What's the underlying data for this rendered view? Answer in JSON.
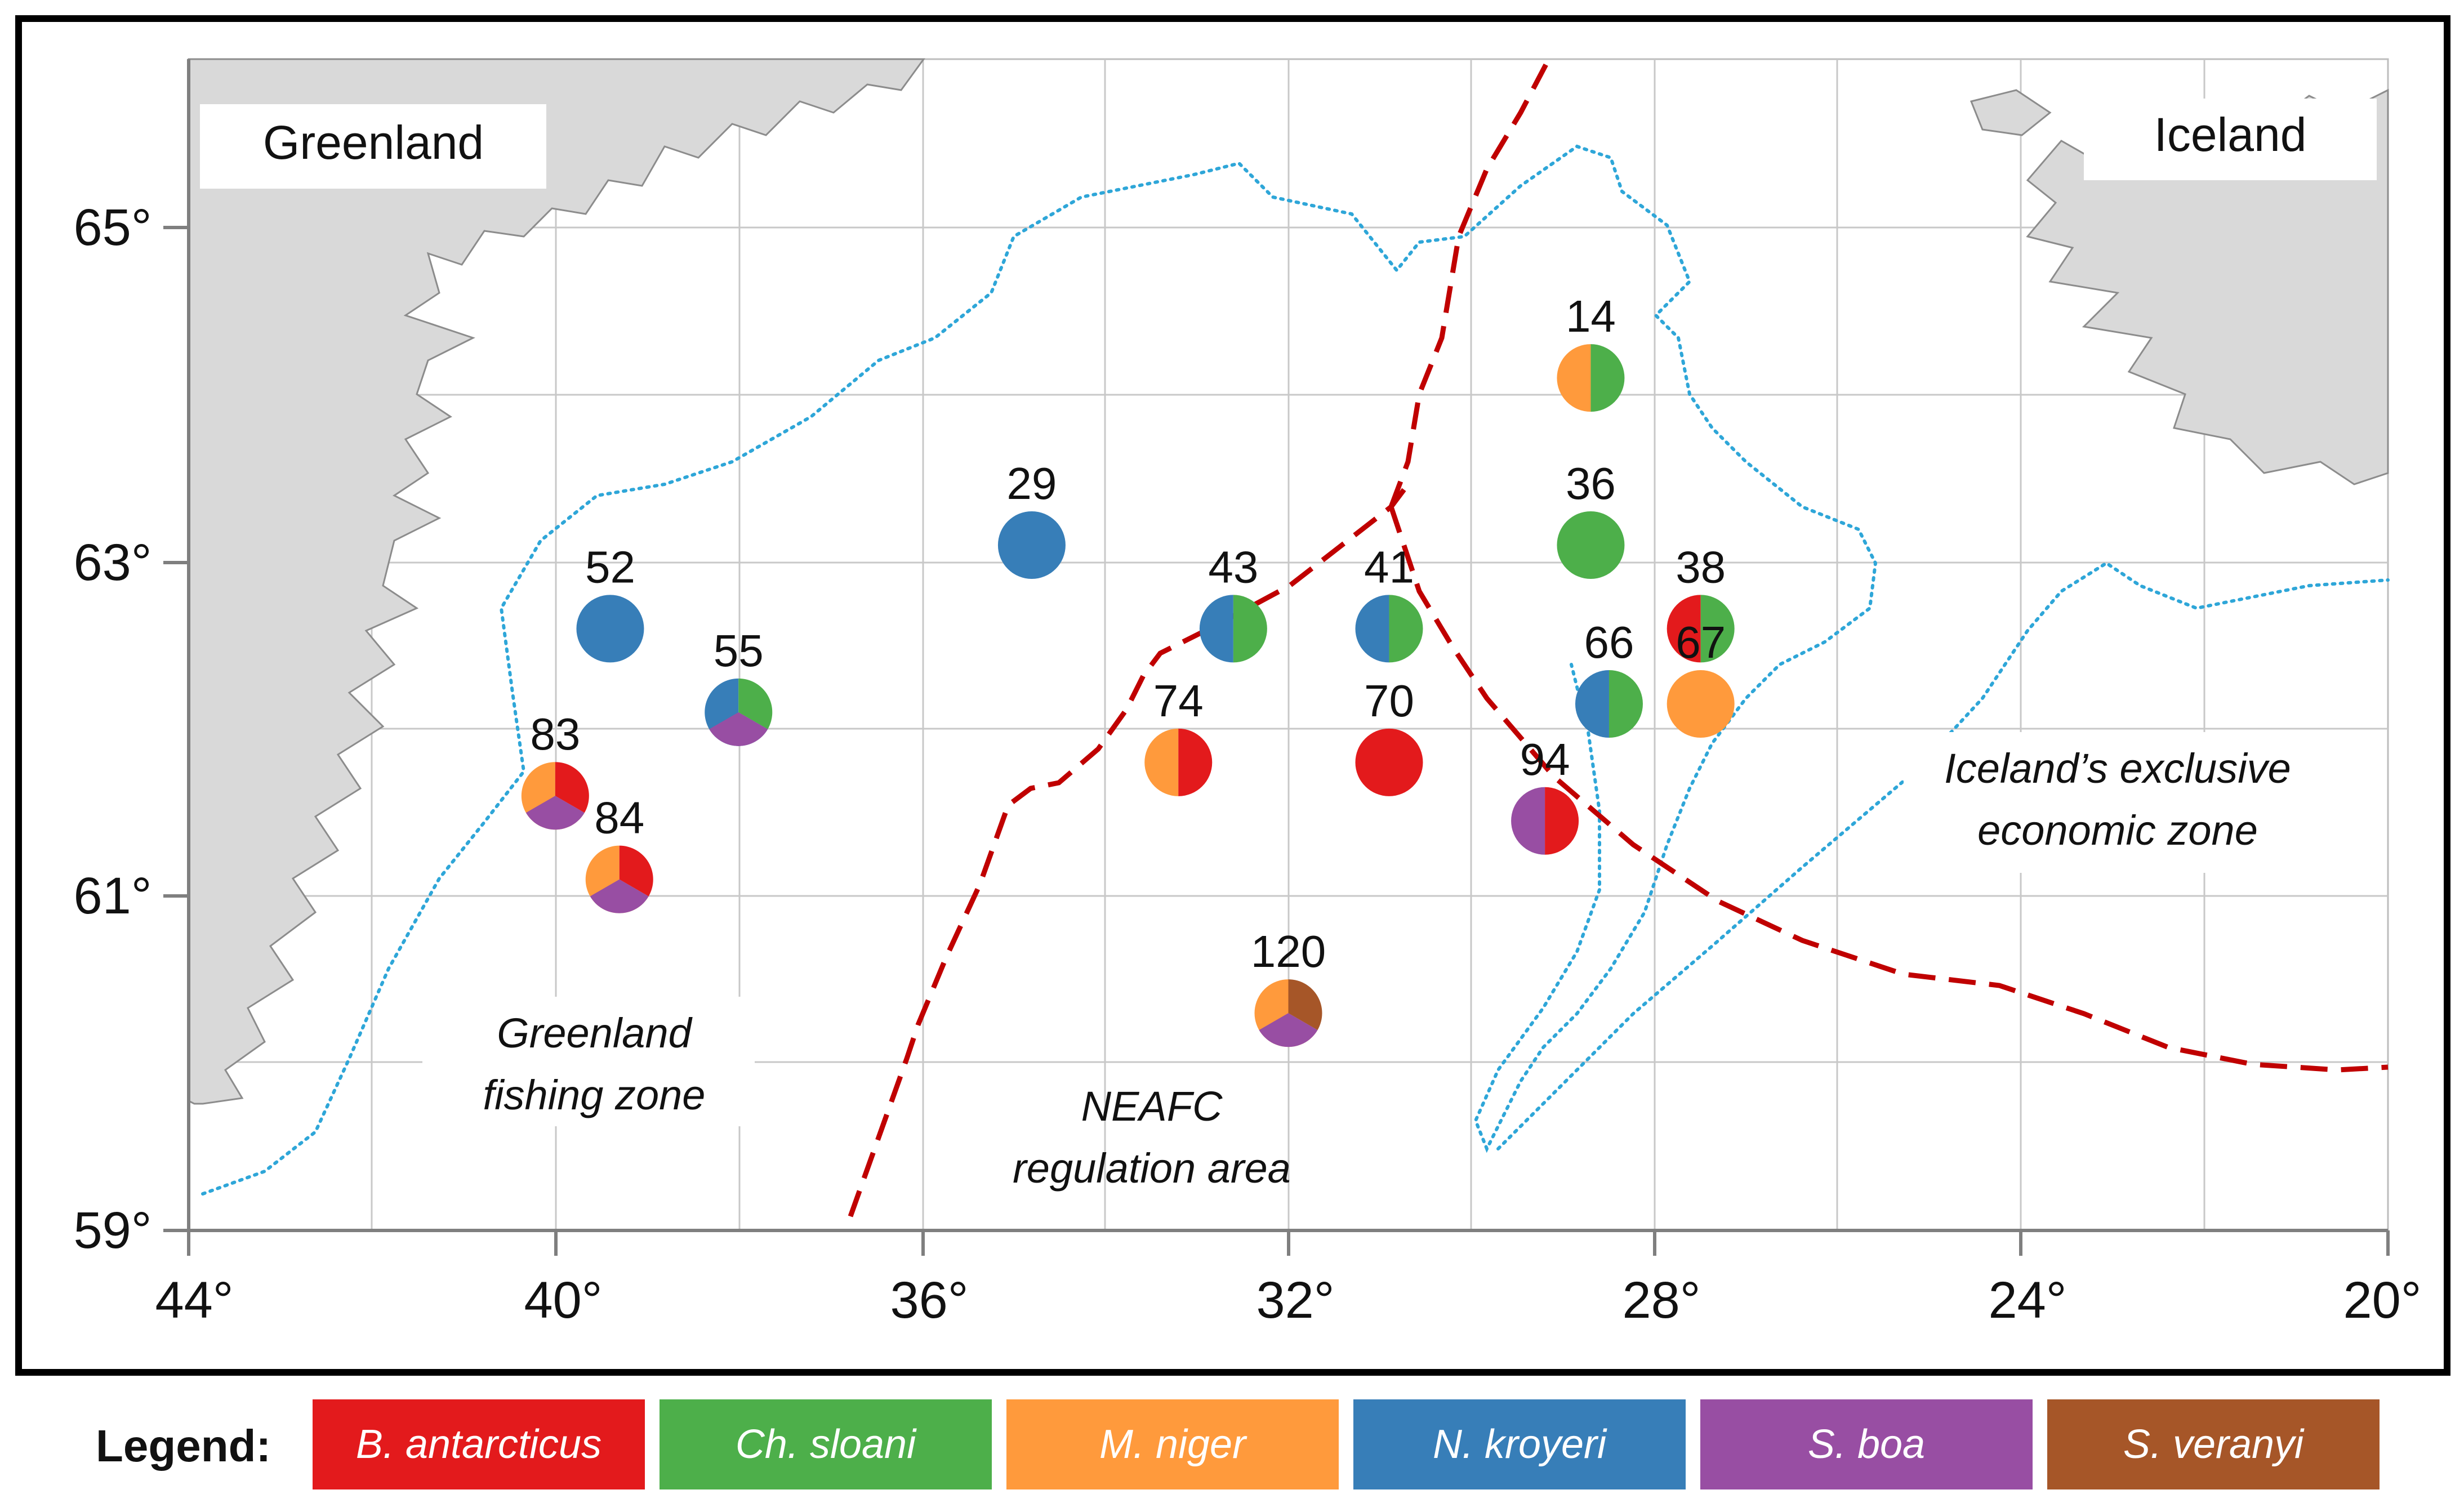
{
  "labels": {
    "greenland": "Greenland",
    "iceland": "Iceland",
    "greenland_zone_line1": "Greenland",
    "greenland_zone_line2": "fishing zone",
    "neafc_line1": "NEAFC",
    "neafc_line2": "regulation area",
    "iceland_zone_line1": "Iceland’s exclusive",
    "iceland_zone_line2": "economic zone"
  },
  "axes": {
    "lat_ticks": [
      "65°",
      "63°",
      "61°",
      "59°"
    ],
    "lon_ticks": [
      "44°",
      "40°",
      "36°",
      "32°",
      "28°",
      "24°",
      "20°"
    ]
  },
  "colors": {
    "B. antarcticus": "#e31a1c",
    "Ch. sloani": "#4daf4a",
    "M. niger": "#ff9a3c",
    "N. kroyeri": "#377eb8",
    "S. boa": "#984ea3",
    "S. veranyi": "#a65628"
  },
  "stations": [
    {
      "id": "14",
      "lon": -28.7,
      "lat": 64.1,
      "species": [
        "M. niger",
        "Ch. sloani"
      ]
    },
    {
      "id": "36",
      "lon": -28.7,
      "lat": 63.1,
      "species": [
        "Ch. sloani"
      ]
    },
    {
      "id": "29",
      "lon": -34.8,
      "lat": 63.1,
      "species": [
        "N. kroyeri"
      ]
    },
    {
      "id": "43",
      "lon": -32.6,
      "lat": 62.6,
      "species": [
        "N. kroyeri",
        "Ch. sloani"
      ]
    },
    {
      "id": "41",
      "lon": -30.9,
      "lat": 62.6,
      "species": [
        "N. kroyeri",
        "Ch. sloani"
      ]
    },
    {
      "id": "38",
      "lon": -27.5,
      "lat": 62.6,
      "species": [
        "B. antarcticus",
        "Ch. sloani"
      ]
    },
    {
      "id": "52",
      "lon": -39.4,
      "lat": 62.6,
      "species": [
        "N. kroyeri"
      ]
    },
    {
      "id": "55",
      "lon": -38.0,
      "lat": 62.1,
      "species": [
        "N. kroyeri",
        "Ch. sloani",
        "S. boa"
      ]
    },
    {
      "id": "66",
      "lon": -28.5,
      "lat": 62.15,
      "species": [
        "N. kroyeri",
        "Ch. sloani"
      ]
    },
    {
      "id": "67",
      "lon": -27.5,
      "lat": 62.15,
      "species": [
        "M. niger"
      ]
    },
    {
      "id": "74",
      "lon": -33.2,
      "lat": 61.8,
      "species": [
        "M. niger",
        "B. antarcticus"
      ]
    },
    {
      "id": "70",
      "lon": -30.9,
      "lat": 61.8,
      "species": [
        "B. antarcticus"
      ]
    },
    {
      "id": "94",
      "lon": -29.2,
      "lat": 61.45,
      "species": [
        "S. boa",
        "B. antarcticus"
      ]
    },
    {
      "id": "83",
      "lon": -40.0,
      "lat": 61.6,
      "species": [
        "M. niger",
        "B. antarcticus",
        "S. boa"
      ]
    },
    {
      "id": "84",
      "lon": -39.3,
      "lat": 61.1,
      "species": [
        "M. niger",
        "B. antarcticus",
        "S. boa"
      ]
    },
    {
      "id": "120",
      "lon": -32.0,
      "lat": 60.3,
      "species": [
        "M. niger",
        "S. veranyi",
        "S. boa"
      ]
    }
  ],
  "legend": {
    "title": "Legend:",
    "items": [
      {
        "label": "B. antarcticus",
        "color": "#e31a1c"
      },
      {
        "label": "Ch. sloani",
        "color": "#4daf4a"
      },
      {
        "label": "M. niger",
        "color": "#ff9a3c"
      },
      {
        "label": "N. kroyeri",
        "color": "#377eb8"
      },
      {
        "label": "S. boa",
        "color": "#984ea3"
      },
      {
        "label": "S. veranyi",
        "color": "#a65628"
      }
    ]
  }
}
